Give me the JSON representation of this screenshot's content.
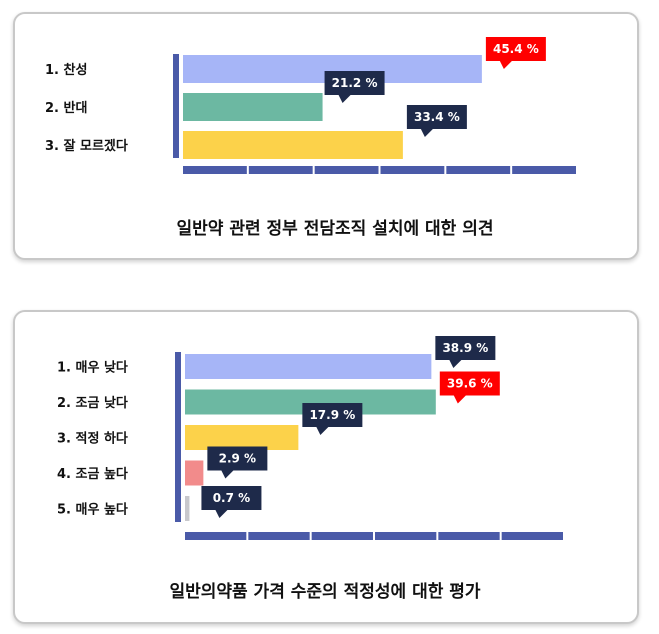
{
  "chart_data": [
    {
      "type": "bar",
      "orientation": "horizontal",
      "title": "일반약 관련 정부 전담조직 설치에 대한 의견",
      "categories": [
        "1. 찬성",
        "2. 반대",
        "3. 잘 모르겠다"
      ],
      "values": [
        45.4,
        21.2,
        33.4
      ],
      "value_labels": [
        "45.4 %",
        "21.2 %",
        "33.4 %"
      ],
      "bar_colors": [
        "#a6b5f7",
        "#6cb8a2",
        "#fcd24a"
      ],
      "label_colors": [
        "#ff0000",
        "#1e2a4a",
        "#1e2a4a"
      ],
      "highlight_index": 0,
      "xlim": [
        0,
        60
      ],
      "axis_ticks": 6
    },
    {
      "type": "bar",
      "orientation": "horizontal",
      "title": "일반의약품 가격 수준의 적정성에 대한 평가",
      "categories": [
        "1. 매우 낮다",
        "2. 조금 낮다",
        "3. 적정 하다",
        "4. 조금 높다",
        "5. 매우 높다"
      ],
      "values": [
        38.9,
        39.6,
        17.9,
        2.9,
        0.7
      ],
      "value_labels": [
        "38.9 %",
        "39.6 %",
        "17.9 %",
        "2.9 %",
        "0.7 %"
      ],
      "bar_colors": [
        "#a6b5f7",
        "#6cb8a2",
        "#fcd24a",
        "#f28b8b",
        "#c8c8cc"
      ],
      "label_colors": [
        "#1e2a4a",
        "#ff0000",
        "#1e2a4a",
        "#1e2a4a",
        "#1e2a4a"
      ],
      "highlight_index": 1,
      "xlim": [
        0,
        60
      ],
      "axis_ticks": 6
    }
  ],
  "colors": {
    "axis": "#4a5aa8",
    "callout_dark": "#1e2a4a",
    "callout_highlight": "#ff0000"
  }
}
